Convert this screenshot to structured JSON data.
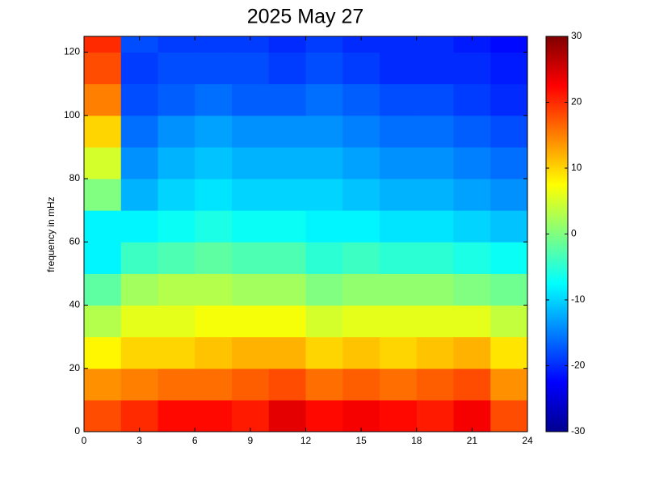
{
  "chart_data": {
    "type": "heatmap",
    "title": "2025 May 27",
    "ylabel": "frequency in mHz",
    "colormap": "jet",
    "x_edges": [
      0,
      2,
      4,
      6,
      8,
      10,
      12,
      14,
      16,
      18,
      20,
      22,
      24
    ],
    "y_edges": [
      0,
      10,
      20,
      30,
      40,
      50,
      60,
      70,
      80,
      90,
      100,
      110,
      120,
      125
    ],
    "z": [
      [
        18,
        20,
        22,
        22,
        21,
        24,
        22,
        23,
        22,
        21,
        23,
        18
      ],
      [
        14,
        15,
        16,
        16,
        17,
        18,
        16,
        17,
        16,
        17,
        18,
        14
      ],
      [
        8,
        10,
        10,
        11,
        12,
        12,
        10,
        11,
        10,
        11,
        12,
        9
      ],
      [
        3,
        6,
        6,
        7,
        7,
        7,
        5,
        6,
        6,
        6,
        6,
        4
      ],
      [
        -2,
        2,
        3,
        3,
        2,
        2,
        0,
        1,
        1,
        1,
        0,
        -1
      ],
      [
        -8,
        -4,
        -3,
        -2,
        -3,
        -3,
        -5,
        -4,
        -5,
        -5,
        -6,
        -7
      ],
      [
        -8,
        -8,
        -7,
        -6,
        -7,
        -7,
        -8,
        -8,
        -9,
        -9,
        -10,
        -11
      ],
      [
        0,
        -12,
        -10,
        -9,
        -10,
        -10,
        -10,
        -11,
        -12,
        -12,
        -13,
        -14
      ],
      [
        5,
        -14,
        -12,
        -11,
        -12,
        -12,
        -12,
        -13,
        -14,
        -14,
        -15,
        -16
      ],
      [
        10,
        -16,
        -14,
        -13,
        -14,
        -14,
        -14,
        -15,
        -16,
        -16,
        -17,
        -18
      ],
      [
        15,
        -18,
        -17,
        -16,
        -17,
        -17,
        -16,
        -17,
        -18,
        -18,
        -19,
        -20
      ],
      [
        18,
        -19,
        -18,
        -18,
        -18,
        -19,
        -18,
        -19,
        -20,
        -20,
        -20,
        -21
      ],
      [
        20,
        -18,
        -19,
        -19,
        -19,
        -20,
        -19,
        -20,
        -20,
        -20,
        -21,
        -22
      ]
    ],
    "xlim": [
      0,
      24
    ],
    "xticks": [
      0,
      3,
      6,
      9,
      12,
      15,
      18,
      21,
      24
    ],
    "ylim": [
      0,
      125
    ],
    "yticks": [
      0,
      20,
      40,
      60,
      80,
      100,
      120
    ],
    "clim": [
      -30,
      30
    ],
    "cticks": [
      -30,
      -20,
      -10,
      0,
      10,
      20,
      30
    ]
  }
}
